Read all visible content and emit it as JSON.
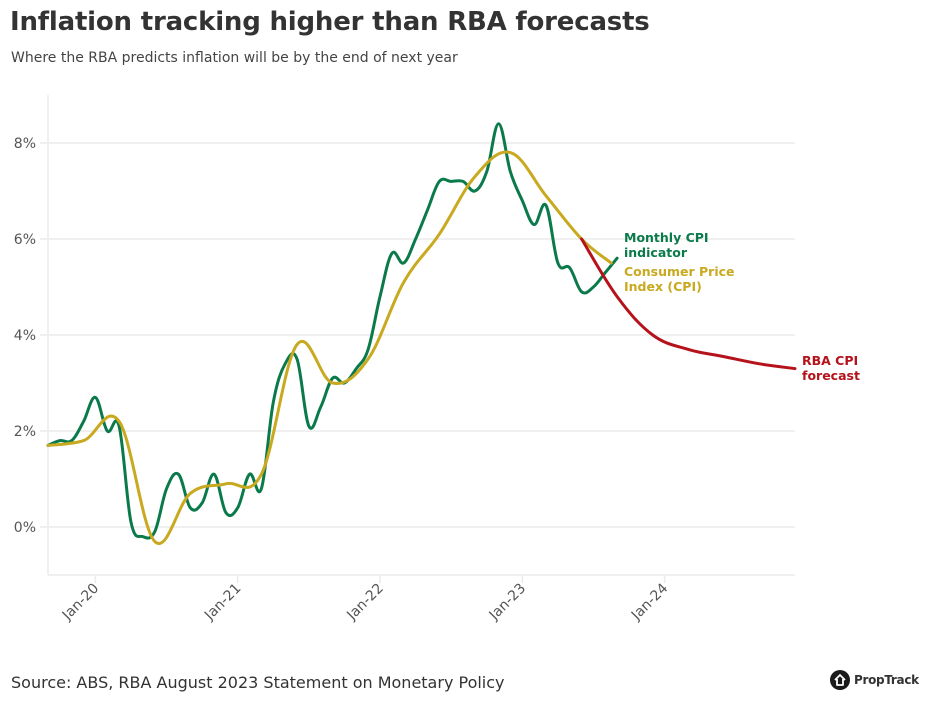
{
  "header": {
    "title": "Inflation tracking higher than RBA forecasts",
    "subtitle": "Where the RBA predicts inflation will be by the end of next year"
  },
  "footer": {
    "source": "Source: ABS, RBA August 2023 Statement on Monetary Policy",
    "logo_text": "PropTrack",
    "logo_icon": "house-icon"
  },
  "chart_data": {
    "type": "line",
    "title": "Inflation tracking higher than RBA forecasts",
    "subtitle": "Where the RBA predicts inflation will be by the end of next year",
    "xlabel": "",
    "ylabel": "",
    "x_unit": "months since Jan-2020",
    "xlim": [
      -4,
      59
    ],
    "ylim": [
      -1,
      9
    ],
    "grid": true,
    "legend": "inline-labels-right",
    "x_ticks": [
      {
        "value": 0,
        "label": "Jan-20"
      },
      {
        "value": 12,
        "label": "Jan-21"
      },
      {
        "value": 24,
        "label": "Jan-22"
      },
      {
        "value": 36,
        "label": "Jan-23"
      },
      {
        "value": 48,
        "label": "Jan-24"
      }
    ],
    "y_ticks": [
      {
        "value": 0,
        "label": "0%"
      },
      {
        "value": 2,
        "label": "2%"
      },
      {
        "value": 4,
        "label": "4%"
      },
      {
        "value": 6,
        "label": "6%"
      },
      {
        "value": 8,
        "label": "8%"
      }
    ],
    "series": [
      {
        "name": "Monthly CPI indicator",
        "label_lines": [
          "Monthly CPI",
          "indicator"
        ],
        "color": "#0b7a4b",
        "x": [
          -4,
          -3,
          -2,
          -1,
          0,
          1,
          2,
          3,
          4,
          5,
          6,
          7,
          8,
          9,
          10,
          11,
          12,
          13,
          14,
          15,
          16,
          17,
          18,
          19,
          20,
          21,
          22,
          23,
          24,
          25,
          26,
          27,
          28,
          29,
          30,
          31,
          32,
          33,
          34,
          35,
          36,
          37,
          38,
          39,
          40,
          41,
          42,
          43,
          44
        ],
        "values": [
          1.7,
          1.8,
          1.8,
          2.2,
          2.7,
          2.0,
          2.1,
          0.1,
          -0.2,
          -0.1,
          0.8,
          1.1,
          0.4,
          0.5,
          1.1,
          0.3,
          0.4,
          1.1,
          0.8,
          2.6,
          3.4,
          3.5,
          2.1,
          2.5,
          3.1,
          3.0,
          3.3,
          3.7,
          4.8,
          5.7,
          5.5,
          6.0,
          6.6,
          7.2,
          7.2,
          7.2,
          7.0,
          7.4,
          8.4,
          7.4,
          6.8,
          6.3,
          6.7,
          5.5,
          5.4,
          4.9,
          5.0,
          5.3,
          5.6
        ]
      },
      {
        "name": "Consumer Price Index (CPI)",
        "label_lines": [
          "Consumer Price",
          "Index (CPI)"
        ],
        "color": "#c8a920",
        "x": [
          -4,
          -1,
          2,
          5,
          8,
          11,
          14,
          17,
          20,
          23,
          26,
          29,
          32,
          35,
          38,
          41,
          43.5
        ],
        "values": [
          1.7,
          1.8,
          2.2,
          -0.3,
          0.7,
          0.9,
          1.1,
          3.8,
          3.0,
          3.5,
          5.1,
          6.1,
          7.3,
          7.8,
          6.9,
          6.0,
          5.5
        ]
      },
      {
        "name": "RBA CPI forecast",
        "label_lines": [
          "RBA CPI",
          "forecast"
        ],
        "color": "#b5121b",
        "x": [
          41,
          44,
          47,
          50,
          53,
          56,
          59
        ],
        "values": [
          6.0,
          4.8,
          4.0,
          3.7,
          3.55,
          3.4,
          3.3
        ]
      }
    ]
  }
}
